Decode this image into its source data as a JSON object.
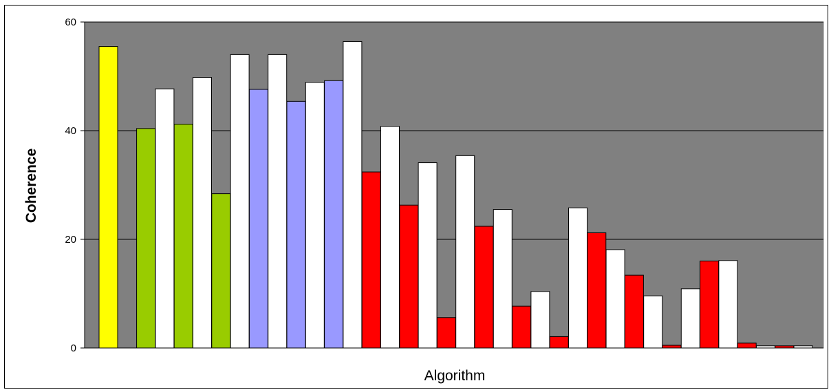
{
  "chart_data": {
    "type": "bar",
    "xlabel": "Algorithm",
    "ylabel": "Coherence",
    "ylim": [
      0,
      60
    ],
    "yticks": [
      0,
      20,
      40,
      60
    ],
    "grid": true,
    "plot_background": "#808080",
    "bars": [
      {
        "value": 55.5,
        "color": "#FFFF00"
      },
      {
        "value": 0,
        "color": "#FFFFFF"
      },
      {
        "value": 40.4,
        "color": "#99CC00"
      },
      {
        "value": 47.7,
        "color": "#FFFFFF"
      },
      {
        "value": 41.2,
        "color": "#99CC00"
      },
      {
        "value": 49.8,
        "color": "#FFFFFF"
      },
      {
        "value": 28.4,
        "color": "#99CC00"
      },
      {
        "value": 54.0,
        "color": "#FFFFFF"
      },
      {
        "value": 47.6,
        "color": "#9999FF"
      },
      {
        "value": 54.0,
        "color": "#FFFFFF"
      },
      {
        "value": 45.4,
        "color": "#9999FF"
      },
      {
        "value": 48.9,
        "color": "#FFFFFF"
      },
      {
        "value": 49.2,
        "color": "#9999FF"
      },
      {
        "value": 56.4,
        "color": "#FFFFFF"
      },
      {
        "value": 32.4,
        "color": "#FF0000"
      },
      {
        "value": 40.8,
        "color": "#FFFFFF"
      },
      {
        "value": 26.3,
        "color": "#FF0000"
      },
      {
        "value": 34.1,
        "color": "#FFFFFF"
      },
      {
        "value": 5.6,
        "color": "#FF0000"
      },
      {
        "value": 35.4,
        "color": "#FFFFFF"
      },
      {
        "value": 22.4,
        "color": "#FF0000"
      },
      {
        "value": 25.5,
        "color": "#FFFFFF"
      },
      {
        "value": 7.7,
        "color": "#FF0000"
      },
      {
        "value": 10.4,
        "color": "#FFFFFF"
      },
      {
        "value": 2.1,
        "color": "#FF0000"
      },
      {
        "value": 25.8,
        "color": "#FFFFFF"
      },
      {
        "value": 21.2,
        "color": "#FF0000"
      },
      {
        "value": 18.1,
        "color": "#FFFFFF"
      },
      {
        "value": 13.4,
        "color": "#FF0000"
      },
      {
        "value": 9.6,
        "color": "#FFFFFF"
      },
      {
        "value": 0.5,
        "color": "#FF0000"
      },
      {
        "value": 10.9,
        "color": "#FFFFFF"
      },
      {
        "value": 16.0,
        "color": "#FF0000"
      },
      {
        "value": 16.1,
        "color": "#FFFFFF"
      },
      {
        "value": 0.9,
        "color": "#FF0000"
      },
      {
        "value": 0.4,
        "color": "#FFFFFF"
      },
      {
        "value": 0.4,
        "color": "#FF0000"
      },
      {
        "value": 0.4,
        "color": "#FFFFFF"
      }
    ]
  }
}
